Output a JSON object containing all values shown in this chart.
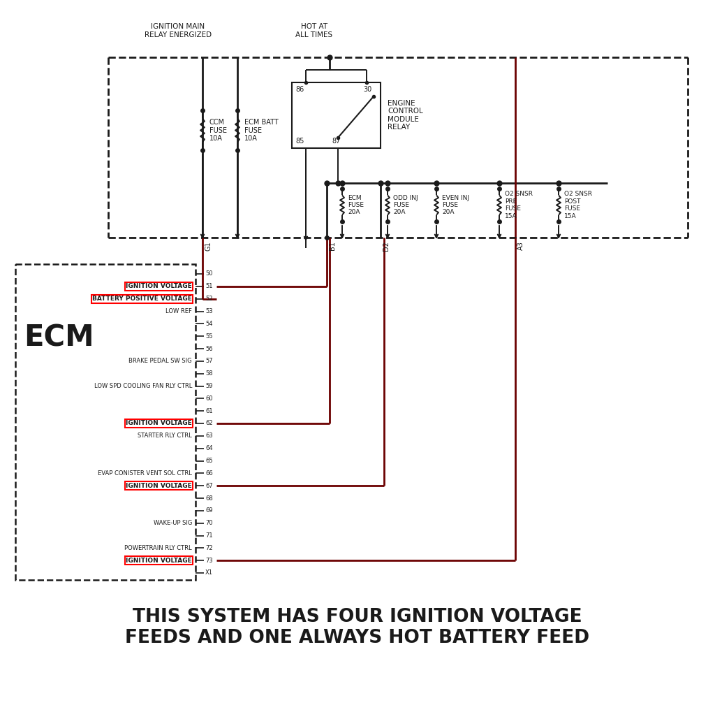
{
  "title_line1": "THIS SYSTEM HAS FOUR IGNITION VOLTAGE",
  "title_line2": "FEEDS AND ONE ALWAYS HOT BATTERY FEED",
  "title_fontsize": 19,
  "background_color": "#ffffff",
  "line_color": "#1a1a1a",
  "dark_red": "#6B0000",
  "red_box_color": "#cc0000",
  "ecm_label": "ECM",
  "relay_label": "ENGINE\nCONTROL\nMODULE\nRELAY",
  "ignition_pins": [
    "51",
    "62",
    "67",
    "73"
  ],
  "battery_pins": [
    "52"
  ],
  "pins": [
    {
      "num": "50",
      "label": ""
    },
    {
      "num": "51",
      "label": "IGNITION VOLTAGE"
    },
    {
      "num": "52",
      "label": "BATTERY POSITIVE VOLTAGE"
    },
    {
      "num": "53",
      "label": "LOW REF"
    },
    {
      "num": "54",
      "label": ""
    },
    {
      "num": "55",
      "label": ""
    },
    {
      "num": "56",
      "label": ""
    },
    {
      "num": "57",
      "label": "BRAKE PEDAL SW SIG"
    },
    {
      "num": "58",
      "label": ""
    },
    {
      "num": "59",
      "label": "LOW SPD COOLING FAN RLY CTRL"
    },
    {
      "num": "60",
      "label": ""
    },
    {
      "num": "61",
      "label": ""
    },
    {
      "num": "62",
      "label": "IGNITION VOLTAGE"
    },
    {
      "num": "63",
      "label": "STARTER RLY CTRL"
    },
    {
      "num": "64",
      "label": ""
    },
    {
      "num": "65",
      "label": ""
    },
    {
      "num": "66",
      "label": "EVAP CONISTER VENT SOL CTRL"
    },
    {
      "num": "67",
      "label": "IGNITION VOLTAGE"
    },
    {
      "num": "68",
      "label": ""
    },
    {
      "num": "69",
      "label": ""
    },
    {
      "num": "70",
      "label": "WAKE-UP SIG"
    },
    {
      "num": "71",
      "label": ""
    },
    {
      "num": "72",
      "label": "POWERTRAIN RLY CTRL"
    },
    {
      "num": "73",
      "label": "IGNITION VOLTAGE"
    },
    {
      "num": "X1",
      "label": ""
    }
  ]
}
